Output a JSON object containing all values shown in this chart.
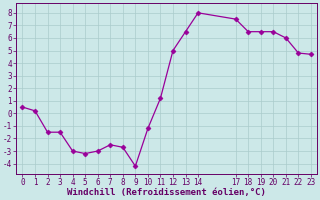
{
  "x": [
    0,
    1,
    2,
    3,
    4,
    5,
    6,
    7,
    8,
    9,
    10,
    11,
    12,
    13,
    14,
    17,
    18,
    19,
    20,
    21,
    22,
    23
  ],
  "y": [
    0.5,
    0.2,
    -1.5,
    -1.5,
    -3.0,
    -3.2,
    -3.0,
    -2.5,
    -2.7,
    -4.2,
    -1.2,
    1.2,
    5.0,
    6.5,
    8.0,
    7.5,
    6.5,
    6.5,
    6.5,
    6.0,
    4.8,
    4.7
  ],
  "line_color": "#990099",
  "marker": "D",
  "marker_size": 2.5,
  "bg_color": "#cce8e8",
  "grid_color": "#aacccc",
  "xlabel": "Windchill (Refroidissement éolien,°C)",
  "yticks": [
    -4,
    -3,
    -2,
    -1,
    0,
    1,
    2,
    3,
    4,
    5,
    6,
    7,
    8
  ],
  "ylim": [
    -4.8,
    8.8
  ],
  "xlim": [
    -0.5,
    23.5
  ],
  "xticks": [
    0,
    1,
    2,
    3,
    4,
    5,
    6,
    7,
    8,
    9,
    10,
    11,
    12,
    13,
    14,
    17,
    18,
    19,
    20,
    21,
    22,
    23
  ],
  "xlabel_fontsize": 6.5,
  "tick_fontsize": 5.5,
  "tick_color": "#660066",
  "spine_color": "#660066",
  "axis_label_color": "#660066",
  "linewidth": 0.9
}
